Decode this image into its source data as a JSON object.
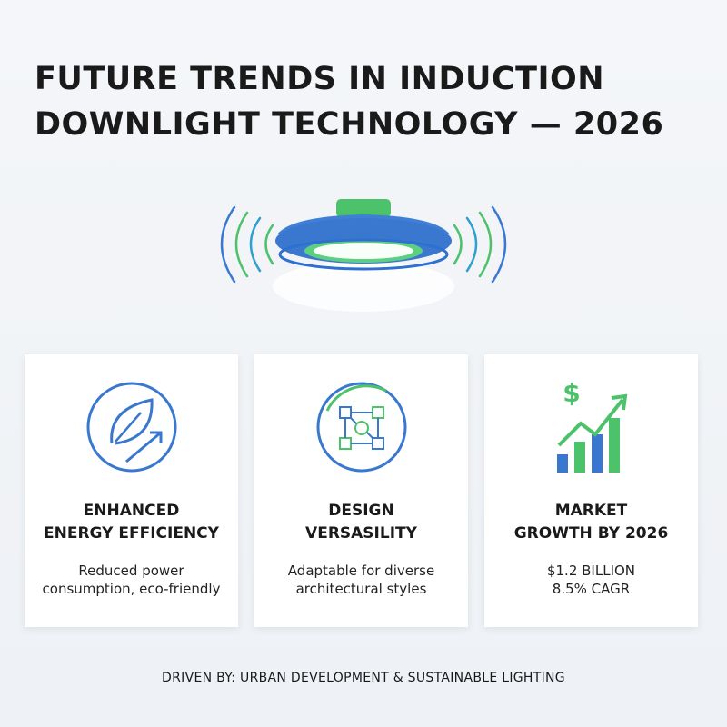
{
  "header": {
    "title_lines": [
      "FUTURE TRENDS IN INDUCTION",
      "DOWNLIGHT TECHNOLOGY — 2026"
    ]
  },
  "cards": [
    {
      "title_lines": [
        "ENHANCED",
        "ENERGY EFFICIENCY"
      ],
      "text_lines": [
        "Reduced power",
        "consumption, eco-friendly"
      ]
    },
    {
      "title_lines": [
        "DESIGN",
        "VERSASILITY"
      ],
      "text_lines": [
        "Adaptable for diverse",
        "architectural styles"
      ]
    },
    {
      "icon_text": "$",
      "title_lines": [
        "MARKET",
        "GROWTH BY 2026"
      ],
      "text_lines": [
        "$1.2 BILLION",
        "8.5% CAGR"
      ]
    }
  ],
  "footer": {
    "text": "DRIVEN BY: URBAN DEVELOPMENT & SUSTAINABLE LIGHTING"
  }
}
